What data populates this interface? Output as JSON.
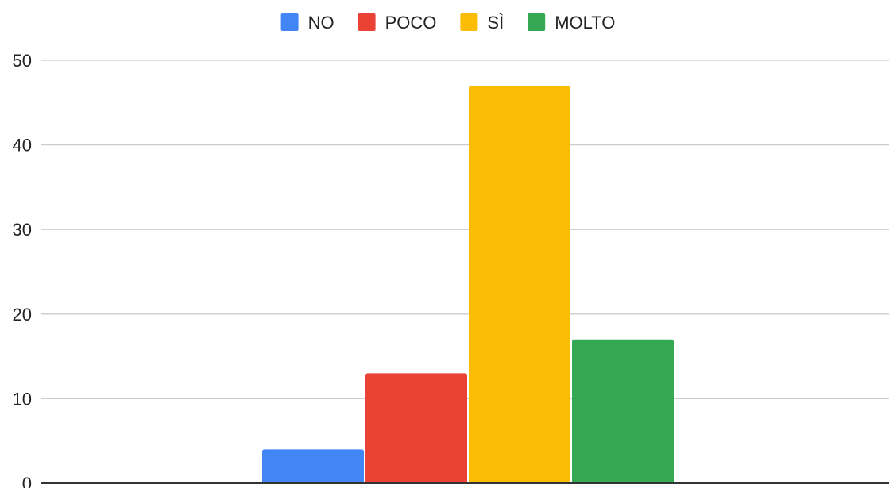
{
  "chart_data": {
    "type": "bar",
    "categories": [
      ""
    ],
    "series": [
      {
        "name": "NO",
        "color": "#4285F4",
        "values": [
          4
        ]
      },
      {
        "name": "POCO",
        "color": "#EA4335",
        "values": [
          13
        ]
      },
      {
        "name": "SÌ",
        "color": "#FBBC04",
        "values": [
          47
        ]
      },
      {
        "name": "MOLTO",
        "color": "#34A853",
        "values": [
          17
        ]
      }
    ],
    "title": "",
    "xlabel": "",
    "ylabel": "",
    "ylim": [
      0,
      50
    ],
    "yticks": [
      0,
      10,
      20,
      30,
      40,
      50
    ],
    "grid": true,
    "legend_position": "top"
  }
}
